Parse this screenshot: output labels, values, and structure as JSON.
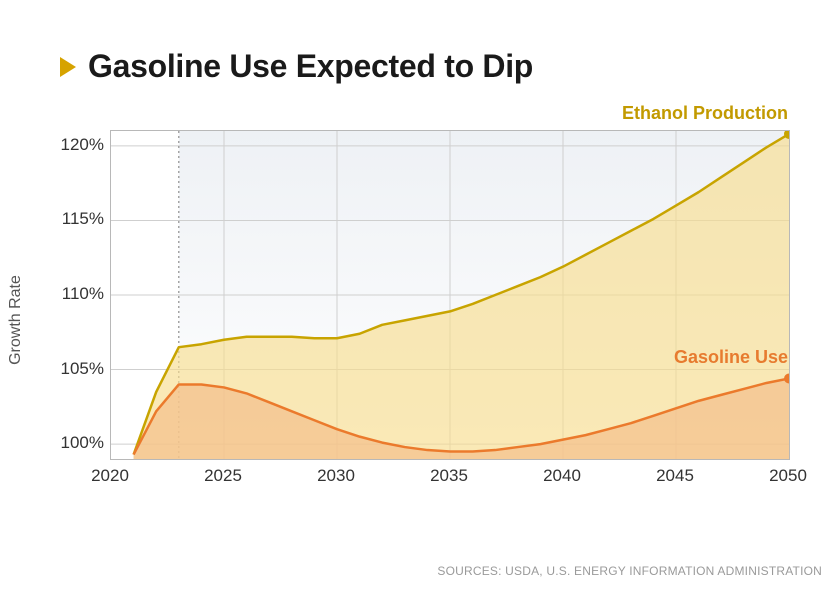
{
  "title": {
    "text": "Gasoline Use Expected to Dip",
    "marker_color": "#d6a300",
    "fontsize": 32
  },
  "chart": {
    "type": "area",
    "ylabel": "Growth Rate",
    "label_fontsize": 16,
    "background_color": "#ffffff",
    "fade_top_color": "#eef1f5",
    "fade_bottom_color": "#ffffff",
    "fade_x_start": 2023,
    "grid_color": "#cfcfcf",
    "border_color": "#b8b8b8",
    "dotted_line_color": "#8e8e8e",
    "dotted_line_x": 2023,
    "x": {
      "min": 2020,
      "max": 2050,
      "ticks": [
        2020,
        2025,
        2030,
        2035,
        2040,
        2045,
        2050
      ]
    },
    "y": {
      "min": 99,
      "max": 121,
      "ticks": [
        100,
        105,
        110,
        115,
        120
      ],
      "tick_suffix": "%",
      "clip_below": 99
    },
    "series": [
      {
        "name": "Ethanol Production",
        "label": "Ethanol Production",
        "label_color": "#c29a00",
        "line_color": "#c8a400",
        "fill_color": "#f7dd8f",
        "fill_opacity": 0.65,
        "line_width": 2.5,
        "end_dot_color": "#c8a400",
        "end_dot_radius": 5,
        "x": [
          2021,
          2022,
          2023,
          2024,
          2025,
          2026,
          2027,
          2028,
          2029,
          2030,
          2031,
          2032,
          2033,
          2034,
          2035,
          2036,
          2037,
          2038,
          2039,
          2040,
          2041,
          2042,
          2043,
          2044,
          2045,
          2046,
          2047,
          2048,
          2049,
          2050
        ],
        "values": [
          99.3,
          103.5,
          106.5,
          106.7,
          107.0,
          107.2,
          107.2,
          107.2,
          107.1,
          107.1,
          107.4,
          108.0,
          108.3,
          108.6,
          108.9,
          109.4,
          110.0,
          110.6,
          111.2,
          111.9,
          112.7,
          113.5,
          114.3,
          115.1,
          116.0,
          116.9,
          117.9,
          118.9,
          119.9,
          120.8
        ]
      },
      {
        "name": "Gasoline Use",
        "label": "Gasoline Use",
        "label_color": "#e77b2f",
        "line_color": "#eb7a2c",
        "fill_color": "#f4bf8b",
        "fill_opacity": 0.7,
        "line_width": 2.5,
        "end_dot_color": "#eb7a2c",
        "end_dot_radius": 5,
        "x": [
          2021,
          2022,
          2023,
          2024,
          2025,
          2026,
          2027,
          2028,
          2029,
          2030,
          2031,
          2032,
          2033,
          2034,
          2035,
          2036,
          2037,
          2038,
          2039,
          2040,
          2041,
          2042,
          2043,
          2044,
          2045,
          2046,
          2047,
          2048,
          2049,
          2050
        ],
        "values": [
          99.3,
          102.2,
          104.0,
          104.0,
          103.8,
          103.4,
          102.8,
          102.2,
          101.6,
          101.0,
          100.5,
          100.1,
          99.8,
          99.6,
          99.5,
          99.5,
          99.6,
          99.8,
          100.0,
          100.3,
          100.6,
          101.0,
          101.4,
          101.9,
          102.4,
          102.9,
          103.3,
          103.7,
          104.1,
          104.4
        ]
      }
    ],
    "series_label_fontsize": 18
  },
  "sources": "SOURCES: USDA, U.S. ENERGY INFORMATION ADMINISTRATION"
}
